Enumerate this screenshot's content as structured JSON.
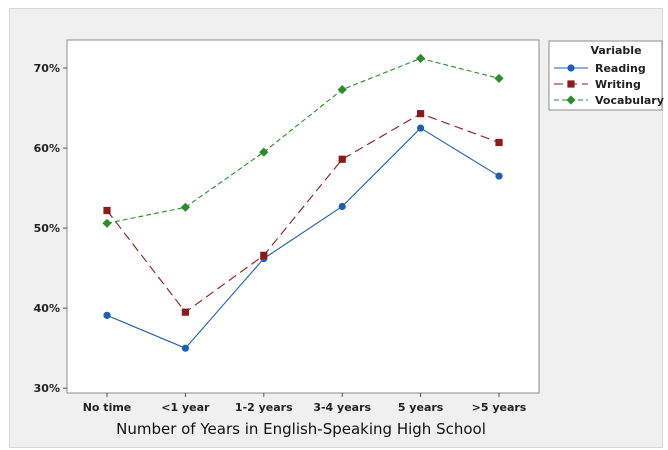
{
  "chart_data": {
    "type": "line",
    "title": "",
    "xlabel": "Number of Years in English-Speaking High School",
    "ylabel": "",
    "categories": [
      "No time",
      "<1 year",
      "1-2 years",
      "3-4 years",
      "5 years",
      ">5 years"
    ],
    "yticks": [
      "30%",
      "40%",
      "50%",
      "60%",
      "70%"
    ],
    "ylim": [
      0.294,
      0.735
    ],
    "yformat": "percent",
    "grid": false,
    "legend": {
      "title": "Variable",
      "position": "top-right-outside"
    },
    "series": [
      {
        "name": "Reading",
        "values": [
          0.391,
          0.35,
          0.462,
          0.527,
          0.625,
          0.565
        ],
        "color": "#1f5fae",
        "marker": "circle",
        "dash": "solid"
      },
      {
        "name": "Writing",
        "values": [
          0.522,
          0.395,
          0.466,
          0.586,
          0.643,
          0.607
        ],
        "color": "#8b1a1a",
        "marker": "square",
        "dash": "longdash"
      },
      {
        "name": "Vocabulary",
        "values": [
          0.506,
          0.526,
          0.595,
          0.673,
          0.712,
          0.687
        ],
        "color": "#2e8b2e",
        "marker": "diamond",
        "dash": "shortdash"
      }
    ]
  }
}
